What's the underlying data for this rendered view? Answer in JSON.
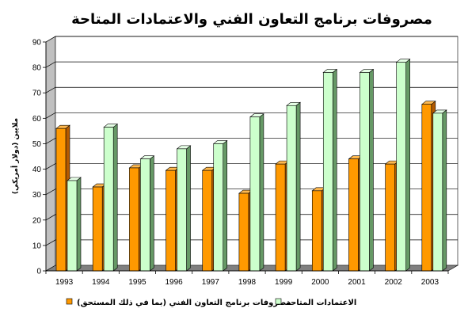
{
  "chart_data": {
    "type": "bar",
    "title": "مصروفات برنامج التعاون الفني والاعتمادات المتاحة",
    "ylabel": "ملايين (دولار أمريكي)",
    "xlabel": "",
    "ylim": [
      0,
      90
    ],
    "yticks": [
      0,
      10,
      20,
      30,
      40,
      50,
      60,
      70,
      80,
      90
    ],
    "grid": true,
    "legend_position": "bottom",
    "categories": [
      "1993",
      "1994",
      "1995",
      "1996",
      "1997",
      "1998",
      "1999",
      "2000",
      "2001",
      "2002",
      "2003"
    ],
    "series": [
      {
        "name": "مصروفات برنامج التعاون الفني (بما في ذلك المستحق)",
        "color": "#ff9900",
        "values": [
          56,
          33,
          40.5,
          39.5,
          39.5,
          30.5,
          42,
          31.5,
          44,
          42,
          65.5
        ]
      },
      {
        "name": "الاعتمادات المتاحة",
        "color": "#ccffcc",
        "values": [
          35.5,
          56.5,
          44,
          48,
          50,
          60.5,
          65,
          78,
          78,
          82,
          62
        ]
      }
    ]
  }
}
